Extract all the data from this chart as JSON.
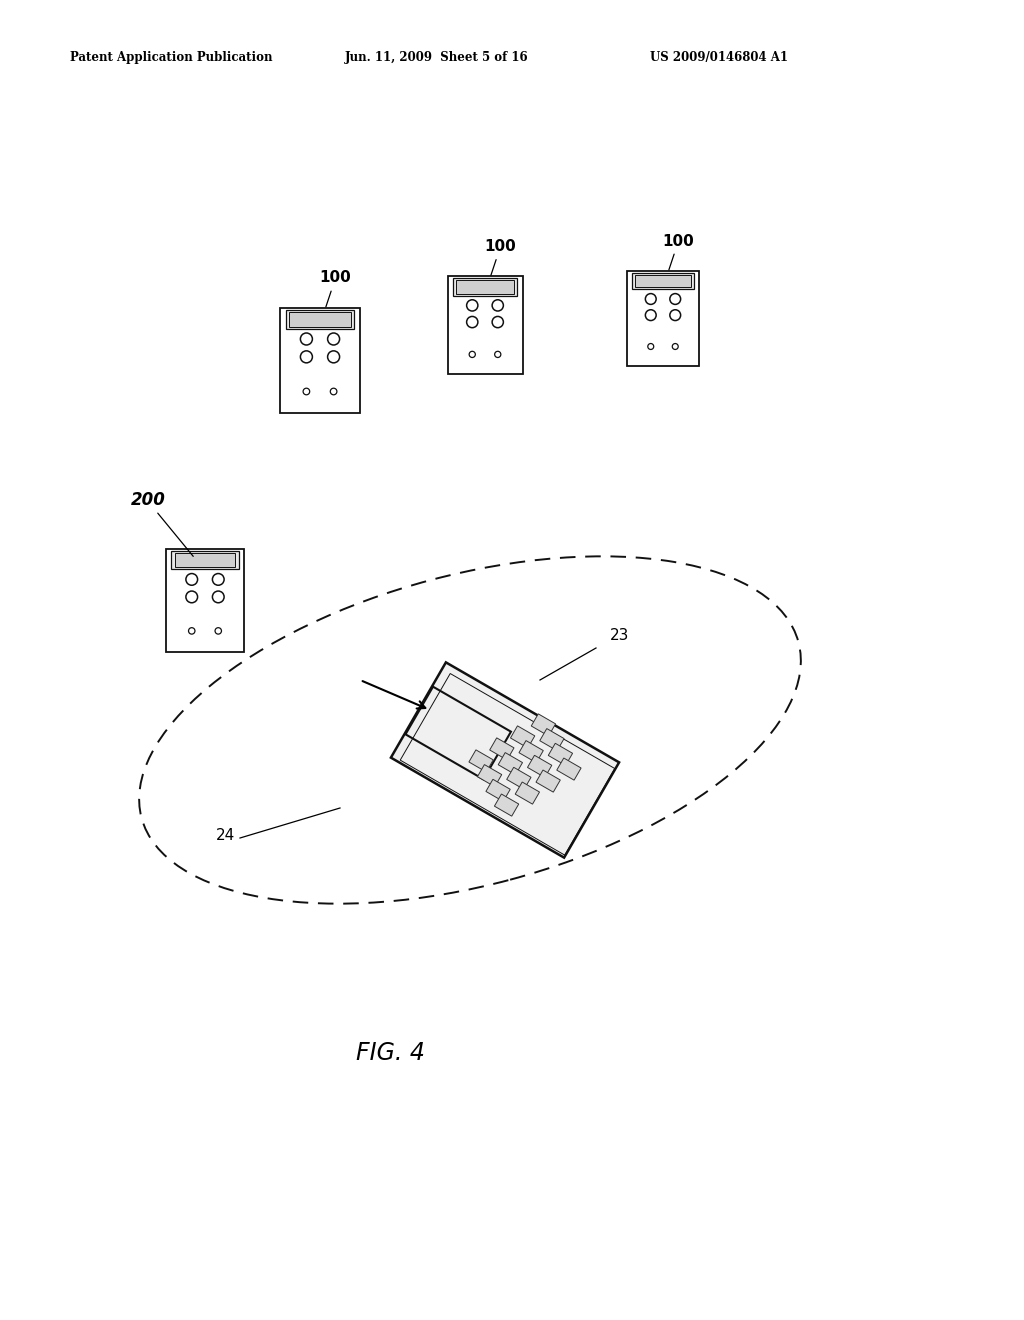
{
  "background_color": "#ffffff",
  "header_left": "Patent Application Publication",
  "header_mid": "Jun. 11, 2009  Sheet 5 of 16",
  "header_right": "US 2009/0146804 A1",
  "figure_label": "FIG. 4",
  "label_23": "23",
  "label_24": "24",
  "label_200": "200",
  "label_100": "100"
}
